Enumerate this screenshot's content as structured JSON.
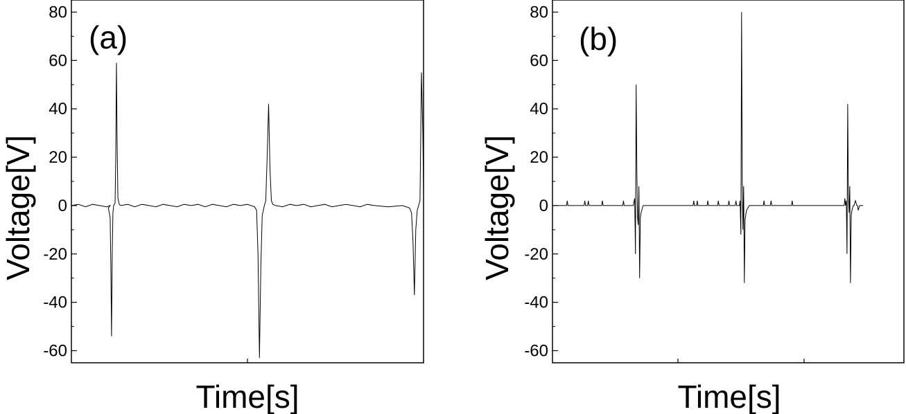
{
  "chart_data": [
    {
      "type": "line",
      "panel_label": "(a)",
      "xlabel": "Time[s]",
      "ylabel": "Voltage[V]",
      "ylim": [
        -65,
        85
      ],
      "yticks": [
        -60,
        -40,
        -20,
        0,
        20,
        40,
        60,
        80
      ],
      "xlim": [
        0,
        1
      ],
      "grid": false,
      "series": [
        {
          "color": "#000000",
          "x": [
            0.0,
            0.02,
            0.04,
            0.06,
            0.08,
            0.1,
            0.11,
            0.105,
            0.11,
            0.112,
            0.114,
            0.116,
            0.118,
            0.12,
            0.124,
            0.126,
            0.128,
            0.13,
            0.132,
            0.136,
            0.14,
            0.16,
            0.18,
            0.2,
            0.22,
            0.24,
            0.26,
            0.28,
            0.3,
            0.32,
            0.34,
            0.36,
            0.38,
            0.4,
            0.42,
            0.44,
            0.46,
            0.48,
            0.5,
            0.52,
            0.526,
            0.53,
            0.534,
            0.538,
            0.542,
            0.548,
            0.552,
            0.556,
            0.56,
            0.564,
            0.568,
            0.572,
            0.58,
            0.6,
            0.62,
            0.64,
            0.66,
            0.68,
            0.7,
            0.72,
            0.74,
            0.76,
            0.78,
            0.8,
            0.82,
            0.84,
            0.86,
            0.9,
            0.94,
            0.96,
            0.966,
            0.97,
            0.974,
            0.978,
            0.982,
            0.986,
            0.99,
            0.994,
            0.998,
            1.0
          ],
          "y": [
            0,
            0.5,
            -0.5,
            0.5,
            0,
            -0.5,
            0,
            -1,
            -5,
            -25,
            -54,
            -20,
            -3,
            0,
            1,
            20,
            59,
            25,
            3,
            0.5,
            0,
            0.5,
            -0.5,
            0.5,
            0,
            -0.5,
            0.5,
            0,
            -0.5,
            0.5,
            0,
            0.5,
            -0.5,
            0.5,
            0,
            -0.5,
            0.5,
            0,
            0.5,
            -0.5,
            -2,
            -20,
            -63,
            -25,
            -4,
            0,
            2,
            20,
            42,
            15,
            2,
            0.5,
            0,
            -0.5,
            0.5,
            0,
            0.5,
            -0.5,
            0,
            0.5,
            -0.5,
            0,
            0.5,
            0,
            -0.5,
            0.5,
            0,
            -0.5,
            0,
            -1,
            -3,
            -15,
            -37,
            -10,
            -2,
            0,
            2,
            55,
            30,
            5
          ]
        }
      ]
    },
    {
      "type": "line",
      "panel_label": "(b)",
      "xlabel": "Time[s]",
      "ylabel": "Voltage[V]",
      "ylim": [
        -65,
        85
      ],
      "yticks": [
        -60,
        -40,
        -20,
        0,
        20,
        40,
        60,
        80
      ],
      "xlim": [
        0,
        1
      ],
      "grid": false,
      "series": [
        {
          "color": "#000000",
          "x": [
            0.0,
            0.04,
            0.042,
            0.044,
            0.09,
            0.092,
            0.094,
            0.1,
            0.102,
            0.104,
            0.14,
            0.142,
            0.144,
            0.2,
            0.202,
            0.204,
            0.23,
            0.234,
            0.236,
            0.238,
            0.24,
            0.242,
            0.244,
            0.246,
            0.248,
            0.25,
            0.252,
            0.254,
            0.256,
            0.258,
            0.262,
            0.27,
            0.36,
            0.4,
            0.402,
            0.404,
            0.41,
            0.412,
            0.414,
            0.44,
            0.442,
            0.444,
            0.47,
            0.472,
            0.474,
            0.5,
            0.502,
            0.504,
            0.52,
            0.522,
            0.524,
            0.532,
            0.534,
            0.536,
            0.538,
            0.54,
            0.542,
            0.544,
            0.546,
            0.548,
            0.55,
            0.552,
            0.556,
            0.56,
            0.57,
            0.6,
            0.602,
            0.604,
            0.62,
            0.622,
            0.624,
            0.68,
            0.682,
            0.684,
            0.83,
            0.832,
            0.834,
            0.836,
            0.838,
            0.84,
            0.842,
            0.844,
            0.846,
            0.848,
            0.85,
            0.852,
            0.854,
            0.856,
            0.858,
            0.862,
            0.866,
            0.868,
            0.87,
            0.874,
            0.878,
            0.88,
            0.884
          ],
          "y": [
            0,
            0,
            2,
            0,
            0,
            2,
            0,
            0,
            2,
            0,
            0,
            2,
            0,
            0,
            2,
            0,
            0,
            3,
            -20,
            50,
            15,
            -5,
            -8,
            8,
            -30,
            -5,
            -3,
            -2,
            -1,
            0,
            0,
            0,
            0,
            0,
            2,
            0,
            0,
            2,
            0,
            0,
            2,
            0,
            0,
            2,
            0,
            0,
            2,
            0,
            0,
            2,
            0,
            0,
            2,
            -12,
            80,
            10,
            -10,
            8,
            -32,
            -6,
            -4,
            -2,
            -1,
            0,
            0,
            0,
            2,
            0,
            0,
            2,
            0,
            0,
            2,
            0,
            0,
            3,
            0,
            2,
            -20,
            42,
            5,
            -3,
            8,
            -32,
            -4,
            -2,
            -1,
            0,
            0,
            2,
            0,
            0,
            -2,
            0,
            0,
            0,
            0
          ]
        }
      ]
    }
  ]
}
